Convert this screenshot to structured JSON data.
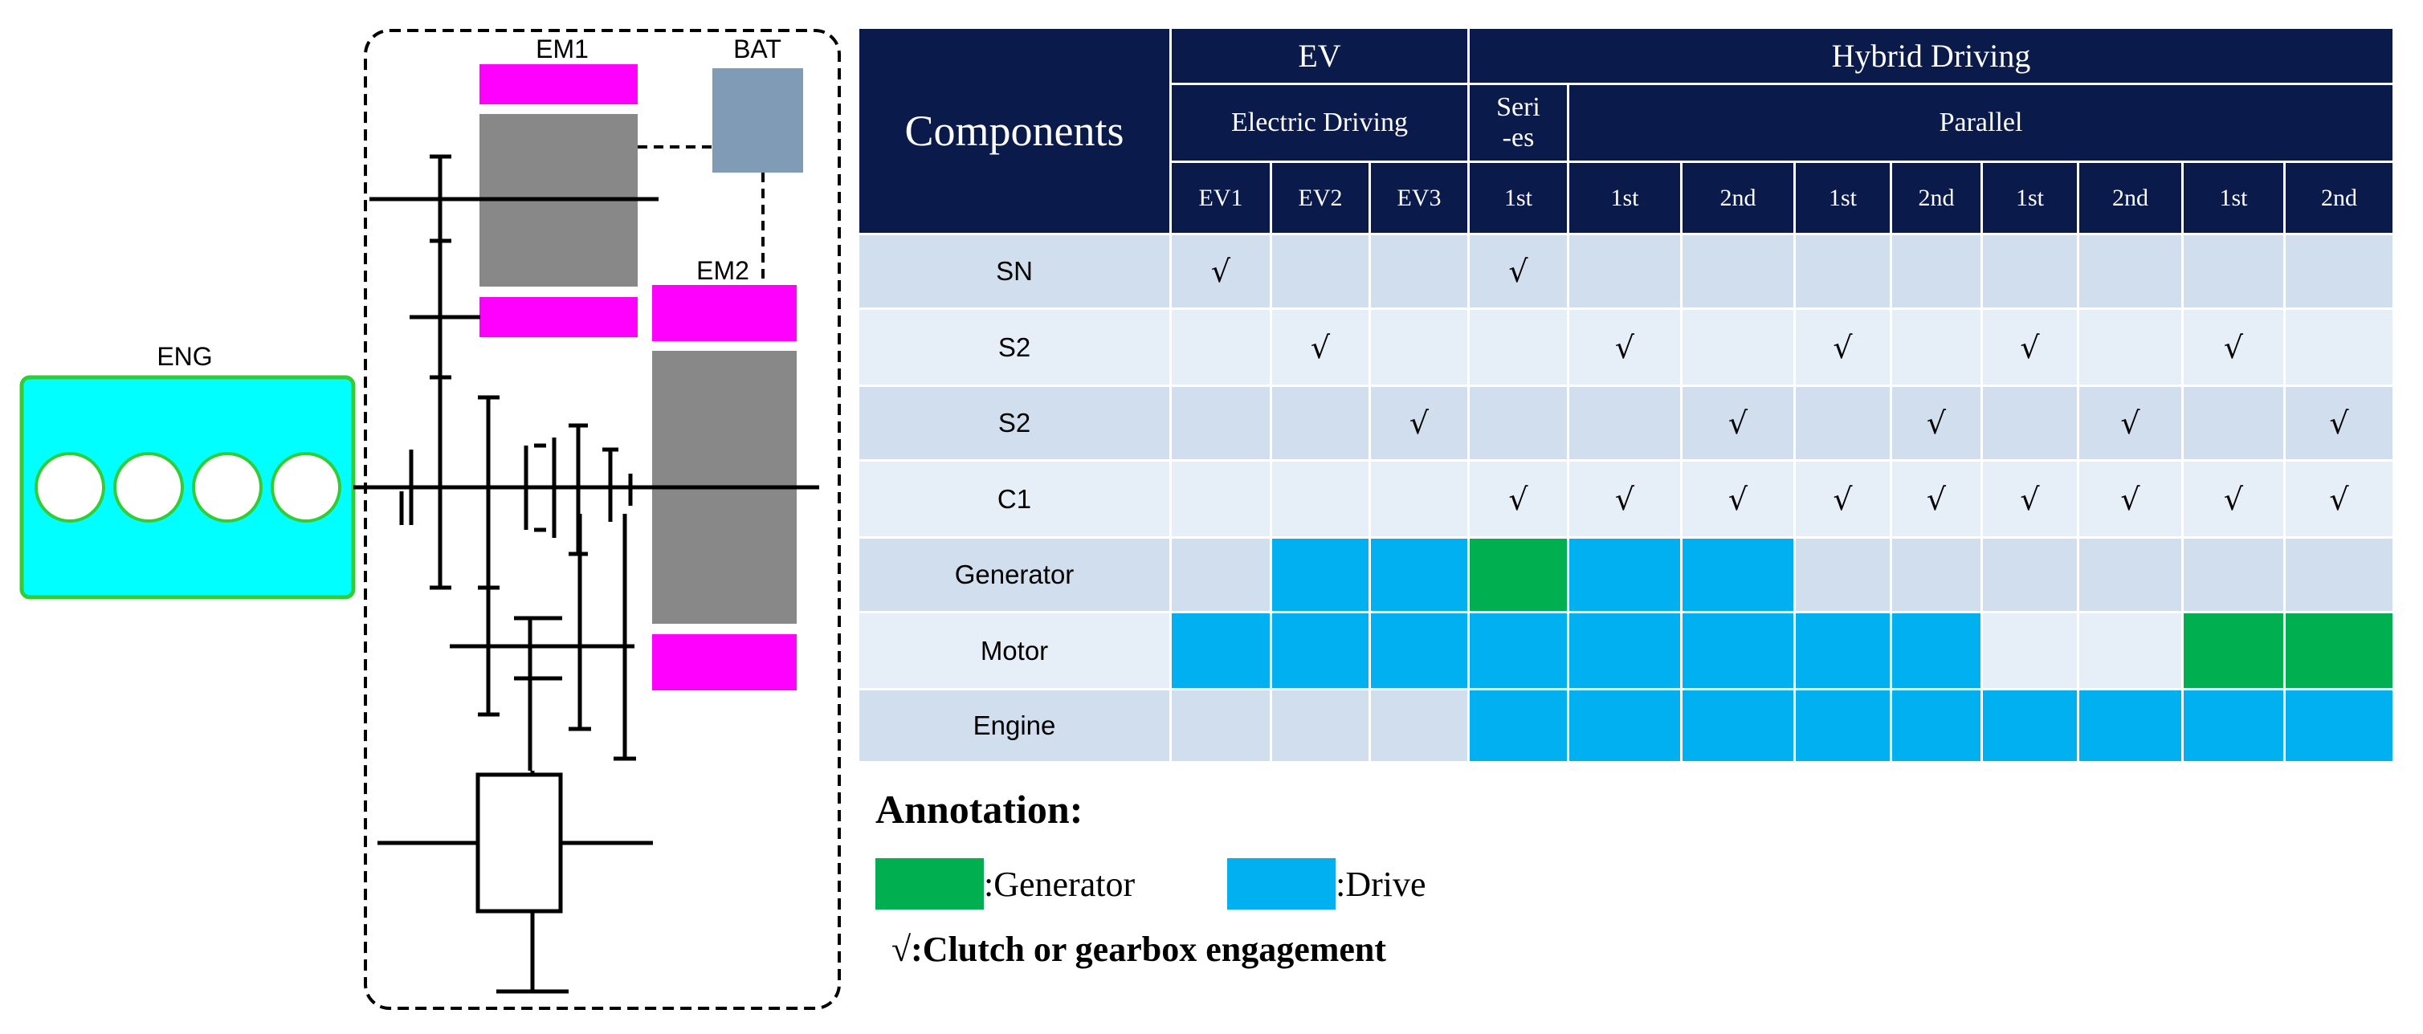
{
  "schematic": {
    "labels": {
      "engine": "ENG",
      "em1": "EM1",
      "em2": "EM2",
      "battery": "BAT"
    },
    "colors": {
      "engine_fill": "#00ffff",
      "engine_border": "#33cc33",
      "coil": "#ff00ff",
      "rotor": "#888888",
      "battery": "#7f9bb5",
      "frame": "#000000"
    }
  },
  "table": {
    "header": {
      "components": "Components",
      "ev": "EV",
      "hybrid": "Hybrid Driving",
      "electric_driving": "Electric Driving",
      "series": "Seri\n-es",
      "parallel": "Parallel",
      "gears": [
        "EV1",
        "EV2",
        "EV3",
        "1st",
        "1st",
        "2nd",
        "1st",
        "2nd",
        "1st",
        "2nd",
        "1st",
        "2nd"
      ]
    },
    "rows": [
      {
        "label": "SN",
        "cells": [
          "√",
          "",
          "",
          "√",
          "",
          "",
          "",
          "",
          "",
          "",
          "",
          ""
        ]
      },
      {
        "label": "S2",
        "cells": [
          "",
          "√",
          "",
          "",
          "√",
          "",
          "√",
          "",
          "√",
          "",
          "√",
          ""
        ]
      },
      {
        "label": "S2",
        "cells": [
          "",
          "",
          "√",
          "",
          "",
          "√",
          "",
          "√",
          "",
          "√",
          "",
          "√"
        ]
      },
      {
        "label": "C1",
        "cells": [
          "",
          "",
          "",
          "√",
          "√",
          "√",
          "√",
          "√",
          "√",
          "√",
          "√",
          "√"
        ]
      },
      {
        "label": "Generator",
        "cells": [
          "",
          "",
          "",
          "",
          "",
          "",
          "",
          "",
          "",
          "",
          "",
          ""
        ],
        "fills": [
          "",
          "drive",
          "drive",
          "generator",
          "drive",
          "drive",
          "",
          "",
          "",
          "",
          "",
          ""
        ]
      },
      {
        "label": "Motor",
        "cells": [
          "",
          "",
          "",
          "",
          "",
          "",
          "",
          "",
          "",
          "",
          "",
          ""
        ],
        "fills": [
          "drive",
          "drive",
          "drive",
          "drive",
          "drive",
          "drive",
          "drive",
          "drive",
          "",
          "",
          "generator",
          "generator"
        ]
      },
      {
        "label": "Engine",
        "cells": [
          "",
          "",
          "",
          "",
          "",
          "",
          "",
          "",
          "",
          "",
          "",
          ""
        ],
        "fills": [
          "",
          "",
          "",
          "drive",
          "drive",
          "drive",
          "drive",
          "drive",
          "drive",
          "drive",
          "drive",
          "drive"
        ]
      }
    ],
    "colors": {
      "header": "#0a1a4a",
      "generator": "#00b050",
      "drive": "#00b0f0",
      "row_dark": "#d0deee",
      "row_light": "#e6eef8"
    }
  },
  "annotation": {
    "title": "Annotation:",
    "generator_label": ":Generator",
    "drive_label": ":Drive",
    "check_symbol": "√",
    "check_label": ":Clutch or gearbox engagement"
  }
}
